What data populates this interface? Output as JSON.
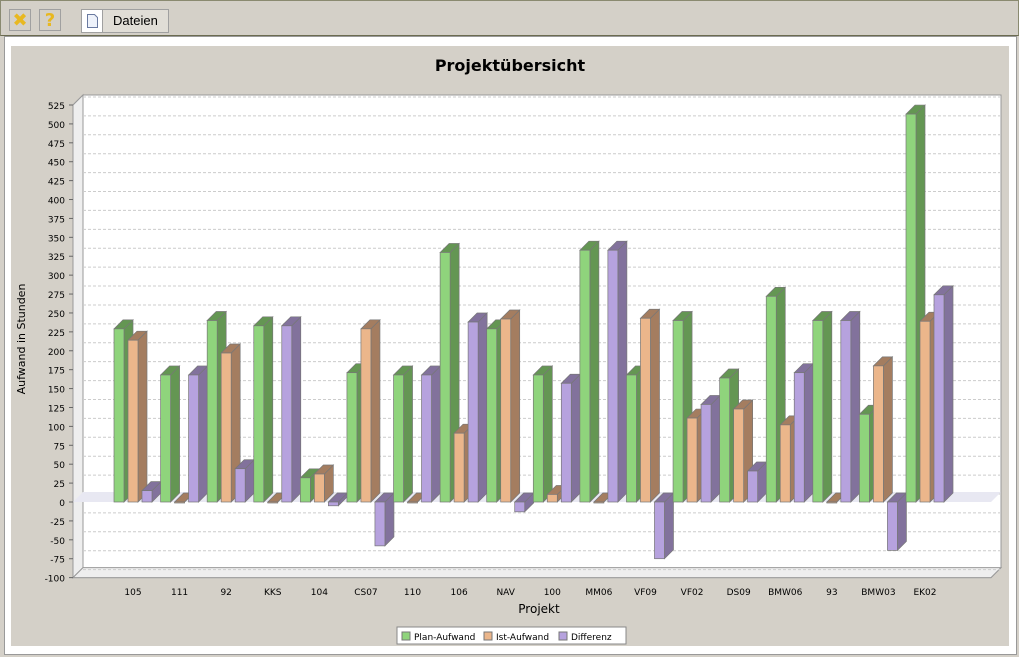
{
  "toolbar": {
    "close_icon": "close-x-icon",
    "help_icon": "question-icon",
    "files_label": "Dateien",
    "files_icon": "document-icon"
  },
  "chart_data": {
    "type": "bar",
    "title": "Projektübersicht",
    "xlabel": "Projekt",
    "ylabel": "Aufwand in Stunden",
    "ylim": [
      -100,
      525
    ],
    "yticks": [
      -100,
      -75,
      -50,
      -25,
      0,
      25,
      50,
      75,
      100,
      125,
      150,
      175,
      200,
      225,
      250,
      275,
      300,
      325,
      350,
      375,
      400,
      425,
      450,
      475,
      500,
      525
    ],
    "grid": true,
    "legend_position": "bottom",
    "categories": [
      "105",
      "111",
      "92",
      "KKS",
      "104",
      "CS07",
      "110",
      "106",
      "NAV",
      "100",
      "MM06",
      "VF09",
      "VF02",
      "DS09",
      "BMW06",
      "93",
      "BMW03",
      "EK02"
    ],
    "series": [
      {
        "name": "Plan-Aufwand",
        "color": "#8fd47c",
        "side": "#649653",
        "values": [
          229,
          168,
          240,
          233,
          32,
          171,
          168,
          330,
          229,
          168,
          333,
          168,
          240,
          164,
          272,
          240,
          116,
          513
        ]
      },
      {
        "name": "Ist-Aufwand",
        "color": "#ebb68b",
        "side": "#a47d60",
        "values": [
          214,
          0,
          197,
          0,
          37,
          229,
          0,
          91,
          242,
          10,
          0,
          243,
          111,
          123,
          102,
          0,
          180,
          239
        ]
      },
      {
        "name": "Differenz",
        "color": "#b6a2de",
        "side": "#82729c",
        "values": [
          15,
          168,
          44,
          233,
          -5,
          -58,
          168,
          238,
          -13,
          157,
          333,
          -75,
          129,
          41,
          171,
          240,
          -64,
          274
        ]
      }
    ]
  }
}
